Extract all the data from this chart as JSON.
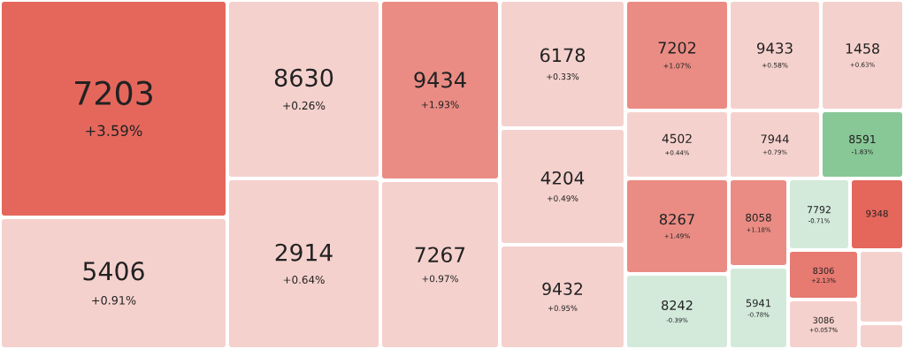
{
  "chart_data": {
    "type": "other",
    "categories": [
      "7203",
      "5406",
      "8630",
      "2914",
      "9434",
      "7267",
      "6178",
      "4204",
      "9432",
      "7202",
      "9433",
      "1458",
      "4502",
      "7944",
      "8591",
      "8267",
      "8242",
      "8058",
      "5941",
      "7792",
      "9348",
      "8306",
      "3086",
      null,
      null
    ],
    "values": [
      3.59,
      0.91,
      0.26,
      0.64,
      1.93,
      0.97,
      0.33,
      0.49,
      0.95,
      1.07,
      0.58,
      0.63,
      0.44,
      0.79,
      -1.83,
      1.49,
      -0.39,
      1.18,
      -0.78,
      -0.71,
      null,
      2.13,
      0.057,
      null,
      null
    ],
    "value_labels": [
      "+3.59%",
      "+0.91%",
      "+0.26%",
      "+0.64%",
      "+1.93%",
      "+0.97%",
      "+0.33%",
      "+0.49%",
      "+0.95%",
      "+1.07%",
      "+0.58%",
      "+0.63%",
      "+0.44%",
      "+0.79%",
      "-1.83%",
      "+1.49%",
      "-0.39%",
      "+1.18%",
      "-0.78%",
      "-0.71%",
      null,
      "+2.13%",
      "+0.057%",
      null,
      null
    ],
    "colors": [
      "#e5675c",
      "#f5d1cd",
      "#f5d1cd",
      "#f5d1cd",
      "#ea8c84",
      "#f5d1cd",
      "#f5d1cd",
      "#f5d1cd",
      "#f5d1cd",
      "#ea8c84",
      "#f5d1cd",
      "#f5d1cd",
      "#f5d1cd",
      "#f5d1cd",
      "#88c796",
      "#ea8c84",
      "#d3eadb",
      "#ea8c84",
      "#d3eadb",
      "#d3eadb",
      "#e5675c",
      "#e77a71",
      "#f5d1cd",
      "#f5d1cd",
      "#f5d1cd"
    ]
  }
}
